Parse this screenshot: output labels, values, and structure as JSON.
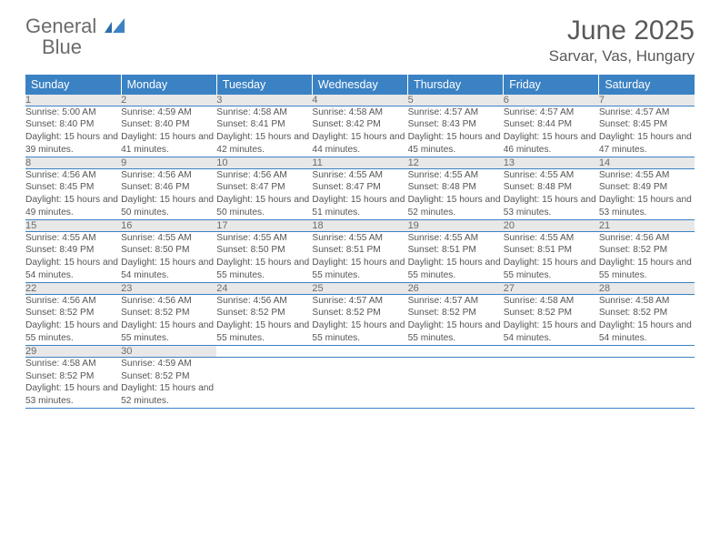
{
  "brand": {
    "word1": "General",
    "word2": "Blue"
  },
  "title": "June 2025",
  "location": "Sarvar, Vas, Hungary",
  "colors": {
    "header_bg": "#3b82c4",
    "header_text": "#ffffff",
    "daynum_bg": "#e8e8e8",
    "text": "#555555",
    "rule": "#3b82c4"
  },
  "day_headers": [
    "Sunday",
    "Monday",
    "Tuesday",
    "Wednesday",
    "Thursday",
    "Friday",
    "Saturday"
  ],
  "weeks": [
    [
      {
        "num": "1",
        "sunrise": "5:00 AM",
        "sunset": "8:40 PM",
        "daylight": "15 hours and 39 minutes."
      },
      {
        "num": "2",
        "sunrise": "4:59 AM",
        "sunset": "8:40 PM",
        "daylight": "15 hours and 41 minutes."
      },
      {
        "num": "3",
        "sunrise": "4:58 AM",
        "sunset": "8:41 PM",
        "daylight": "15 hours and 42 minutes."
      },
      {
        "num": "4",
        "sunrise": "4:58 AM",
        "sunset": "8:42 PM",
        "daylight": "15 hours and 44 minutes."
      },
      {
        "num": "5",
        "sunrise": "4:57 AM",
        "sunset": "8:43 PM",
        "daylight": "15 hours and 45 minutes."
      },
      {
        "num": "6",
        "sunrise": "4:57 AM",
        "sunset": "8:44 PM",
        "daylight": "15 hours and 46 minutes."
      },
      {
        "num": "7",
        "sunrise": "4:57 AM",
        "sunset": "8:45 PM",
        "daylight": "15 hours and 47 minutes."
      }
    ],
    [
      {
        "num": "8",
        "sunrise": "4:56 AM",
        "sunset": "8:45 PM",
        "daylight": "15 hours and 49 minutes."
      },
      {
        "num": "9",
        "sunrise": "4:56 AM",
        "sunset": "8:46 PM",
        "daylight": "15 hours and 50 minutes."
      },
      {
        "num": "10",
        "sunrise": "4:56 AM",
        "sunset": "8:47 PM",
        "daylight": "15 hours and 50 minutes."
      },
      {
        "num": "11",
        "sunrise": "4:55 AM",
        "sunset": "8:47 PM",
        "daylight": "15 hours and 51 minutes."
      },
      {
        "num": "12",
        "sunrise": "4:55 AM",
        "sunset": "8:48 PM",
        "daylight": "15 hours and 52 minutes."
      },
      {
        "num": "13",
        "sunrise": "4:55 AM",
        "sunset": "8:48 PM",
        "daylight": "15 hours and 53 minutes."
      },
      {
        "num": "14",
        "sunrise": "4:55 AM",
        "sunset": "8:49 PM",
        "daylight": "15 hours and 53 minutes."
      }
    ],
    [
      {
        "num": "15",
        "sunrise": "4:55 AM",
        "sunset": "8:49 PM",
        "daylight": "15 hours and 54 minutes."
      },
      {
        "num": "16",
        "sunrise": "4:55 AM",
        "sunset": "8:50 PM",
        "daylight": "15 hours and 54 minutes."
      },
      {
        "num": "17",
        "sunrise": "4:55 AM",
        "sunset": "8:50 PM",
        "daylight": "15 hours and 55 minutes."
      },
      {
        "num": "18",
        "sunrise": "4:55 AM",
        "sunset": "8:51 PM",
        "daylight": "15 hours and 55 minutes."
      },
      {
        "num": "19",
        "sunrise": "4:55 AM",
        "sunset": "8:51 PM",
        "daylight": "15 hours and 55 minutes."
      },
      {
        "num": "20",
        "sunrise": "4:55 AM",
        "sunset": "8:51 PM",
        "daylight": "15 hours and 55 minutes."
      },
      {
        "num": "21",
        "sunrise": "4:56 AM",
        "sunset": "8:52 PM",
        "daylight": "15 hours and 55 minutes."
      }
    ],
    [
      {
        "num": "22",
        "sunrise": "4:56 AM",
        "sunset": "8:52 PM",
        "daylight": "15 hours and 55 minutes."
      },
      {
        "num": "23",
        "sunrise": "4:56 AM",
        "sunset": "8:52 PM",
        "daylight": "15 hours and 55 minutes."
      },
      {
        "num": "24",
        "sunrise": "4:56 AM",
        "sunset": "8:52 PM",
        "daylight": "15 hours and 55 minutes."
      },
      {
        "num": "25",
        "sunrise": "4:57 AM",
        "sunset": "8:52 PM",
        "daylight": "15 hours and 55 minutes."
      },
      {
        "num": "26",
        "sunrise": "4:57 AM",
        "sunset": "8:52 PM",
        "daylight": "15 hours and 55 minutes."
      },
      {
        "num": "27",
        "sunrise": "4:58 AM",
        "sunset": "8:52 PM",
        "daylight": "15 hours and 54 minutes."
      },
      {
        "num": "28",
        "sunrise": "4:58 AM",
        "sunset": "8:52 PM",
        "daylight": "15 hours and 54 minutes."
      }
    ],
    [
      {
        "num": "29",
        "sunrise": "4:58 AM",
        "sunset": "8:52 PM",
        "daylight": "15 hours and 53 minutes."
      },
      {
        "num": "30",
        "sunrise": "4:59 AM",
        "sunset": "8:52 PM",
        "daylight": "15 hours and 52 minutes."
      },
      null,
      null,
      null,
      null,
      null
    ]
  ],
  "labels": {
    "sunrise": "Sunrise: ",
    "sunset": "Sunset: ",
    "daylight": "Daylight: "
  }
}
